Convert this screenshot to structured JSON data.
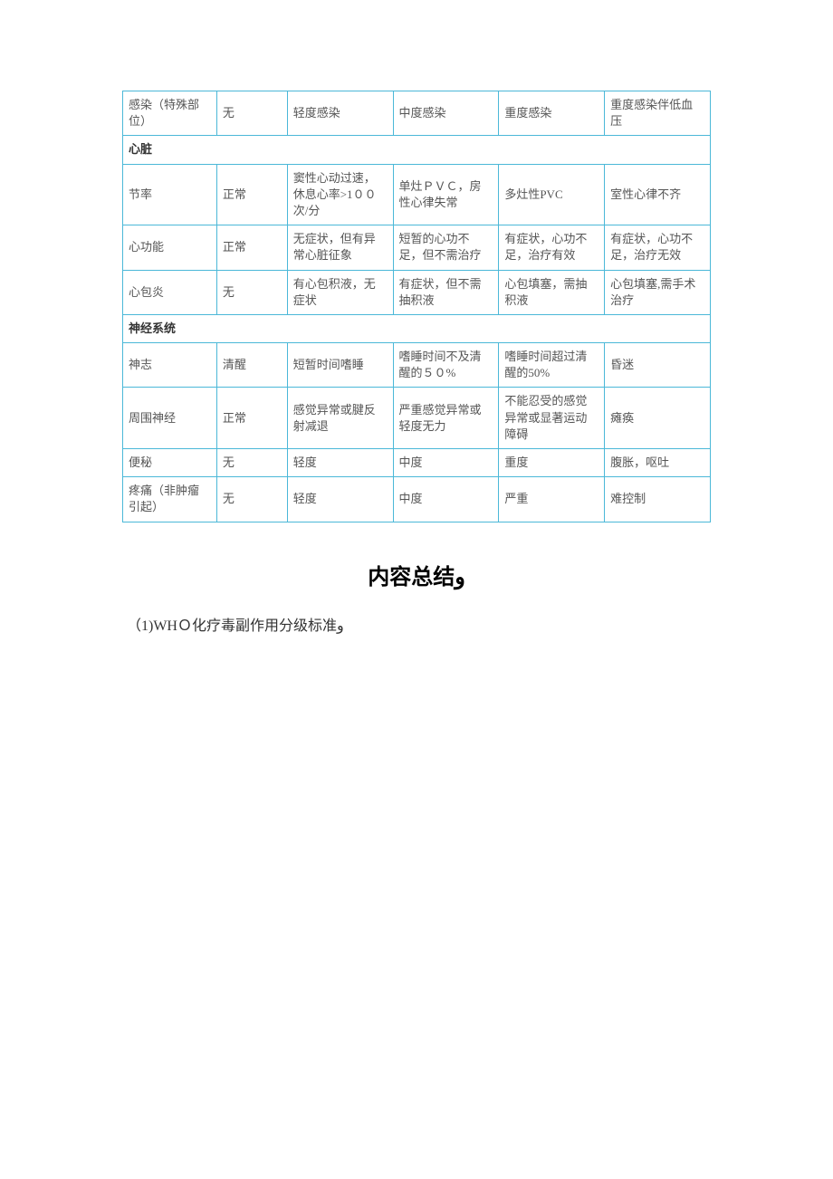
{
  "table": {
    "border_color": "#4bb8d8",
    "rows": [
      {
        "type": "data",
        "cells": [
          "感染（特殊部位）",
          "无",
          "轻度感染",
          "中度感染",
          "重度感染",
          "重度感染伴低血压"
        ]
      },
      {
        "type": "section",
        "label": "心脏"
      },
      {
        "type": "data",
        "cells": [
          "节率",
          "正常",
          "窦性心动过速，休息心率>1００次/分",
          "单灶ＰＶＣ，房性心律失常",
          "多灶性PVC",
          "室性心律不齐"
        ]
      },
      {
        "type": "data",
        "cells": [
          "心功能",
          "正常",
          "无症状，但有异常心脏征象",
          "短暂的心功不足，但不需治疗",
          "有症状，心功不足，治疗有效",
          "有症状，心功不足，治疗无效"
        ]
      },
      {
        "type": "data",
        "cells": [
          "心包炎",
          "无",
          "有心包积液，无症状",
          "有症状，但不需抽积液",
          "心包填塞，需抽积液",
          "心包填塞,需手术治疗"
        ]
      },
      {
        "type": "section",
        "label": "神经系统"
      },
      {
        "type": "data",
        "cells": [
          "神志",
          "清醒",
          "短暂时间嗜睡",
          "嗜睡时间不及清醒的５０%",
          "嗜睡时间超过清醒的50%",
          "昏迷"
        ]
      },
      {
        "type": "data",
        "cells": [
          "周围神经",
          "正常",
          "感觉异常或腱反射减退",
          "严重感觉异常或轻度无力",
          "不能忍受的感觉异常或显著运动障碍",
          "瘫痪"
        ]
      },
      {
        "type": "data",
        "cells": [
          "便秘",
          "无",
          "轻度",
          "中度",
          "重度",
          "腹胀，呕吐"
        ]
      },
      {
        "type": "data",
        "cells": [
          "疼痛（非肿瘤引起）",
          "无",
          "轻度",
          "中度",
          "严重",
          "难控制"
        ]
      }
    ]
  },
  "summary": {
    "title": "内容总结و",
    "item1": "（1)WHＯ化疗毒副作用分级标准و"
  }
}
